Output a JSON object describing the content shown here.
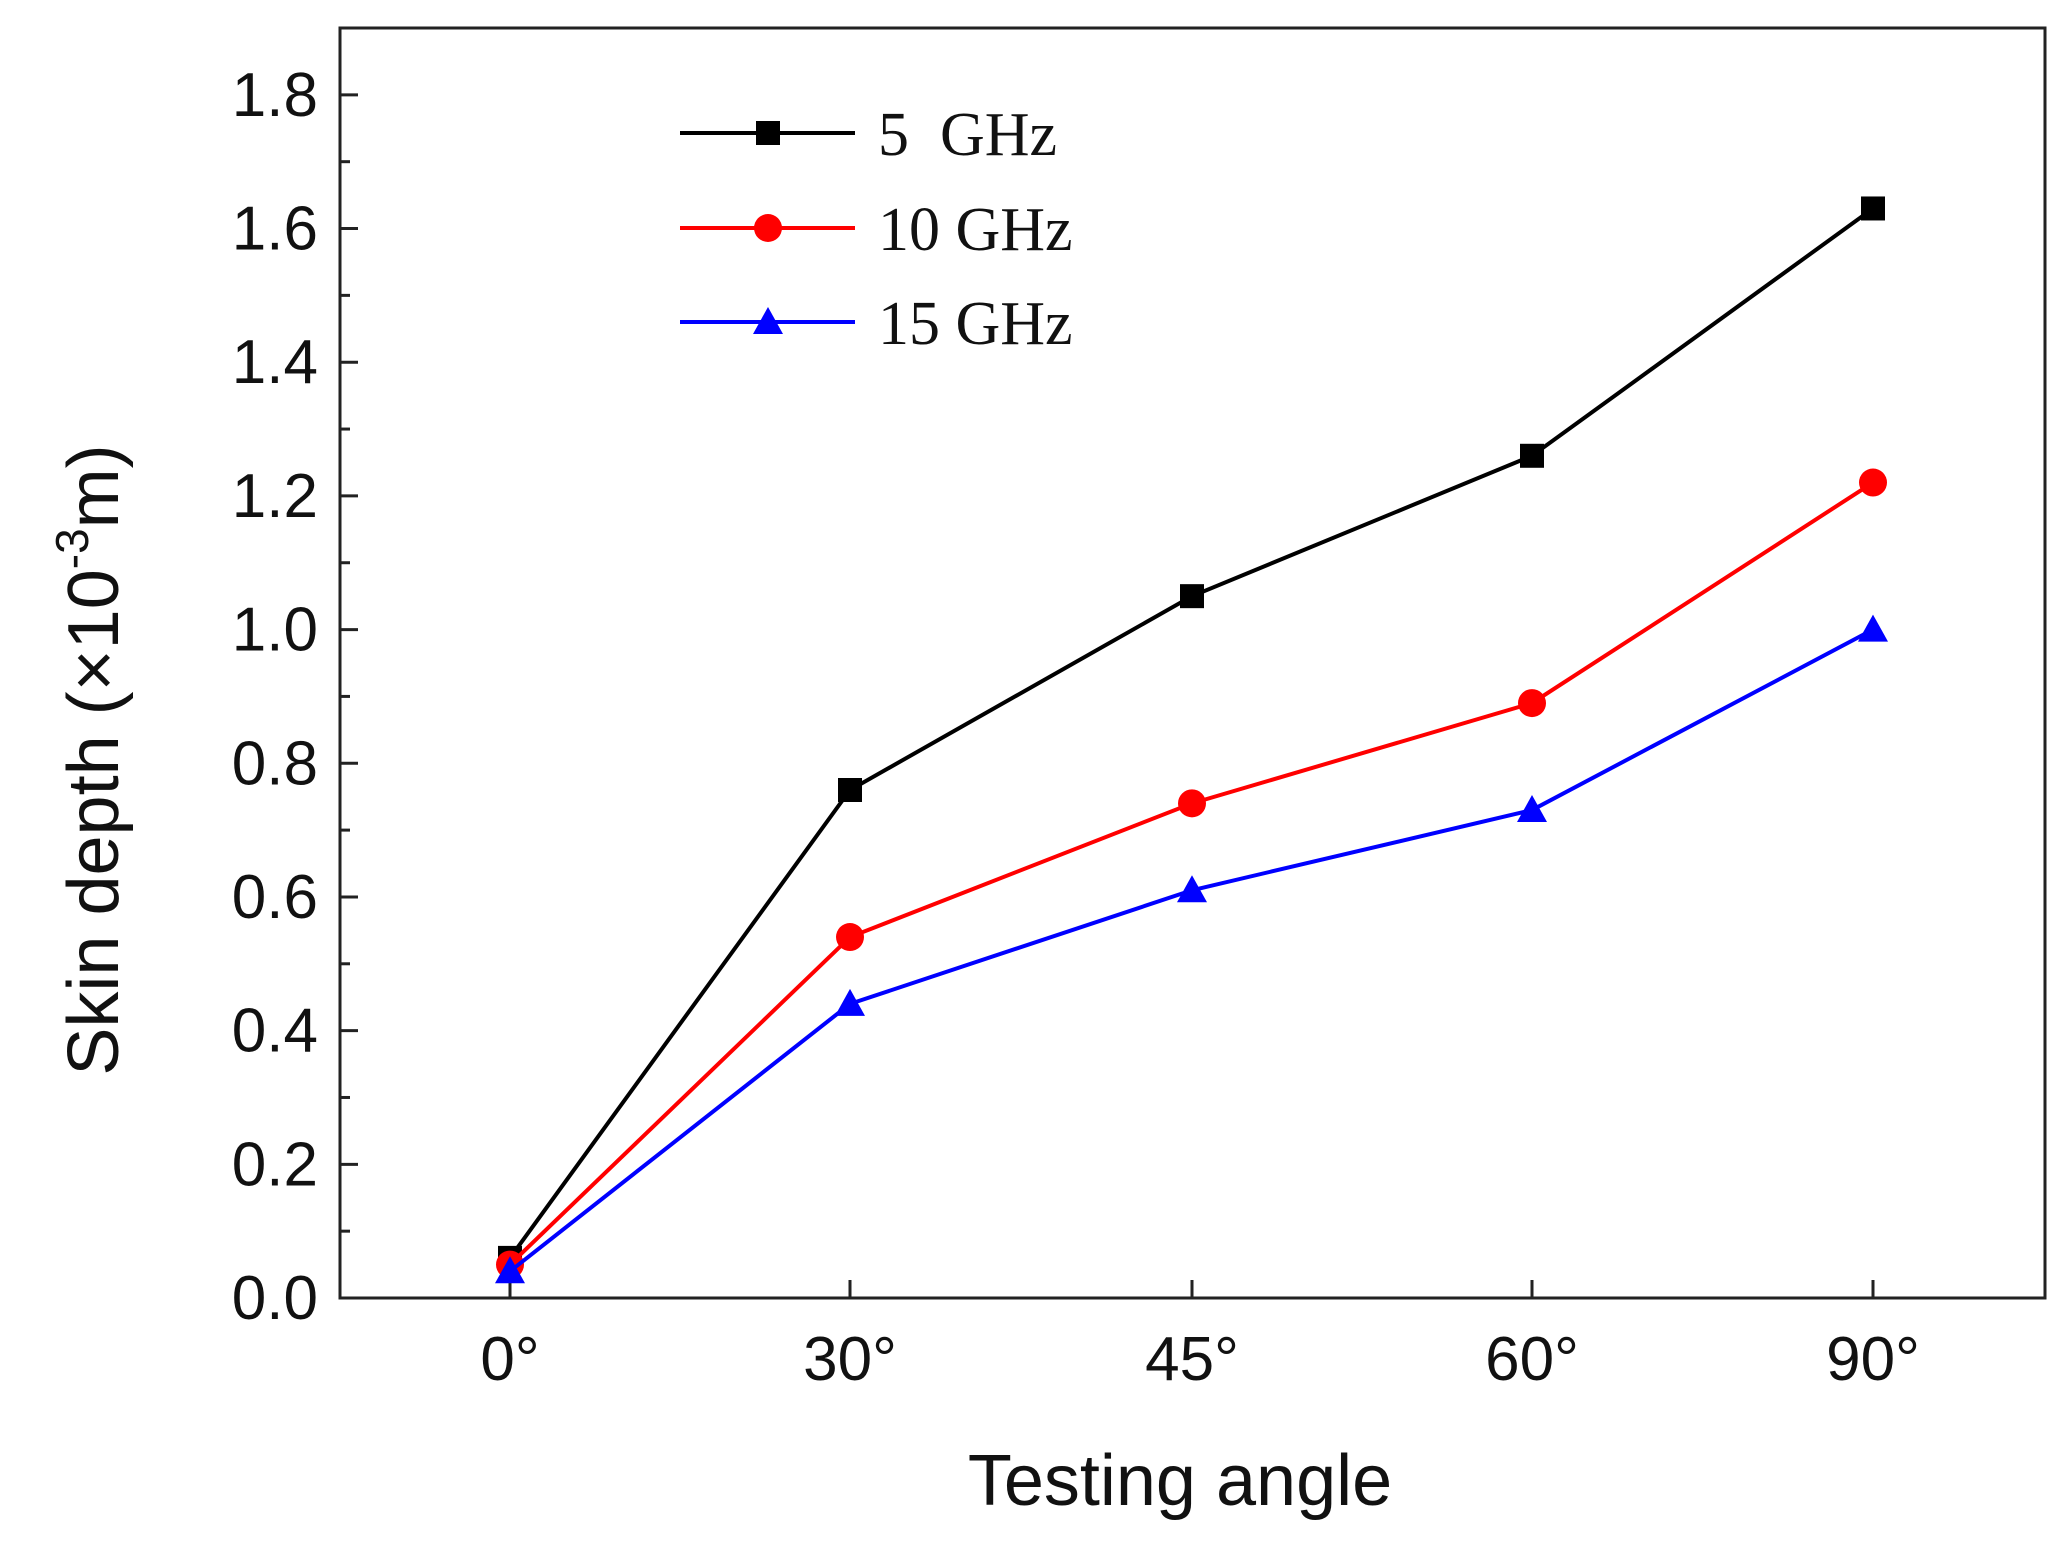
{
  "chart_data": {
    "type": "line",
    "title": "",
    "xlabel": "Testing angle",
    "ylabel": "Skin depth (×10",
    "ylabel_exponent": "-3",
    "ylabel_unit": "m)",
    "categories": [
      "0°",
      "30°",
      "45°",
      "60°",
      "90°"
    ],
    "ylim": [
      0.0,
      1.9
    ],
    "yticks": [
      "0.0",
      "0.2",
      "0.4",
      "0.6",
      "0.8",
      "1.0",
      "1.2",
      "1.4",
      "1.6",
      "1.8"
    ],
    "grid": false,
    "legend_position": "top-left",
    "series": [
      {
        "name": "5  GHz",
        "color": "#000000",
        "marker": "square",
        "values": [
          0.06,
          0.76,
          1.05,
          1.26,
          1.63
        ]
      },
      {
        "name": "10 GHz",
        "color": "#ff0000",
        "marker": "circle",
        "values": [
          0.05,
          0.54,
          0.74,
          0.89,
          1.22
        ]
      },
      {
        "name": "15 GHz",
        "color": "#0000ff",
        "marker": "triangle",
        "values": [
          0.04,
          0.44,
          0.61,
          0.73,
          1.0
        ]
      }
    ]
  }
}
